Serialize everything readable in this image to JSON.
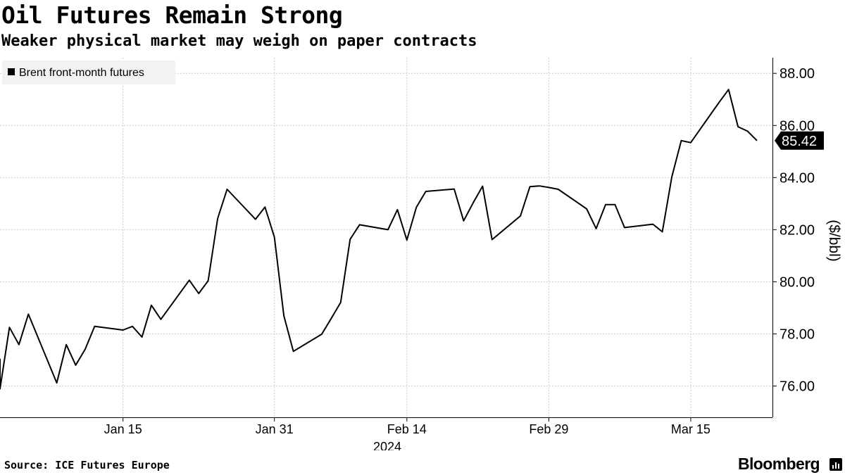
{
  "header": {
    "title": "Oil Futures Remain Strong",
    "subtitle": "Weaker physical market may weigh on paper contracts"
  },
  "footer": {
    "source": "Source: ICE Futures Europe",
    "brand": "Bloomberg"
  },
  "chart_data": {
    "type": "line",
    "title": "Oil Futures Remain Strong",
    "subtitle": "Weaker physical market may weigh on paper contracts",
    "xlabel": "2024",
    "ylabel": "($/bbl)",
    "ylim": [
      74.8,
      88.6
    ],
    "y_ticks": [
      76,
      78,
      80,
      82,
      84,
      86,
      88
    ],
    "y_tick_labels": [
      "76.00",
      "78.00",
      "80.00",
      "82.00",
      "84.00",
      "86.00",
      "88.00"
    ],
    "x_range": [
      "2024-01-02",
      "2024-03-22"
    ],
    "x_ticks": [
      "2024-01-15",
      "2024-01-31",
      "2024-02-14",
      "2024-02-29",
      "2024-03-15"
    ],
    "x_tick_labels": [
      "Jan 15",
      "Jan 31",
      "Feb 14",
      "Feb 29",
      "Mar 15"
    ],
    "grid": true,
    "legend_position": "top-left",
    "last_value_label": "85.42",
    "colors": {
      "line": "#000000",
      "grid": "#cccccc",
      "legend_bg": "#f2f2f2",
      "axis": "#000000"
    },
    "series": [
      {
        "name": "Brent front-month futures",
        "x": [
          "2024-01-02",
          "2024-01-03",
          "2024-01-04",
          "2024-01-05",
          "2024-01-08",
          "2024-01-09",
          "2024-01-10",
          "2024-01-11",
          "2024-01-12",
          "2024-01-15",
          "2024-01-16",
          "2024-01-17",
          "2024-01-18",
          "2024-01-19",
          "2024-01-22",
          "2024-01-23",
          "2024-01-24",
          "2024-01-25",
          "2024-01-26",
          "2024-01-29",
          "2024-01-30",
          "2024-01-31",
          "2024-02-01",
          "2024-02-02",
          "2024-02-05",
          "2024-02-06",
          "2024-02-07",
          "2024-02-08",
          "2024-02-09",
          "2024-02-12",
          "2024-02-13",
          "2024-02-14",
          "2024-02-15",
          "2024-02-16",
          "2024-02-19",
          "2024-02-20",
          "2024-02-21",
          "2024-02-22",
          "2024-02-23",
          "2024-02-26",
          "2024-02-27",
          "2024-02-28",
          "2024-02-29",
          "2024-03-01",
          "2024-03-04",
          "2024-03-05",
          "2024-03-06",
          "2024-03-07",
          "2024-03-08",
          "2024-03-11",
          "2024-03-12",
          "2024-03-13",
          "2024-03-14",
          "2024-03-15",
          "2024-03-18",
          "2024-03-19",
          "2024-03-20",
          "2024-03-21",
          "2024-03-22"
        ],
        "values": [
          75.89,
          78.25,
          77.59,
          78.76,
          76.12,
          77.59,
          76.8,
          77.41,
          78.29,
          78.15,
          78.29,
          77.88,
          79.1,
          78.56,
          80.06,
          79.55,
          80.04,
          82.43,
          83.55,
          82.4,
          82.87,
          81.71,
          78.7,
          77.33,
          77.99,
          78.59,
          79.21,
          81.63,
          82.19,
          82.0,
          82.77,
          81.6,
          82.86,
          83.47,
          83.56,
          82.34,
          83.03,
          83.67,
          81.62,
          82.53,
          83.65,
          83.68,
          83.62,
          83.55,
          82.8,
          82.04,
          82.96,
          82.96,
          82.08,
          82.21,
          81.92,
          84.03,
          85.42,
          85.34,
          86.89,
          87.38,
          85.95,
          85.78,
          85.42
        ]
      }
    ]
  }
}
